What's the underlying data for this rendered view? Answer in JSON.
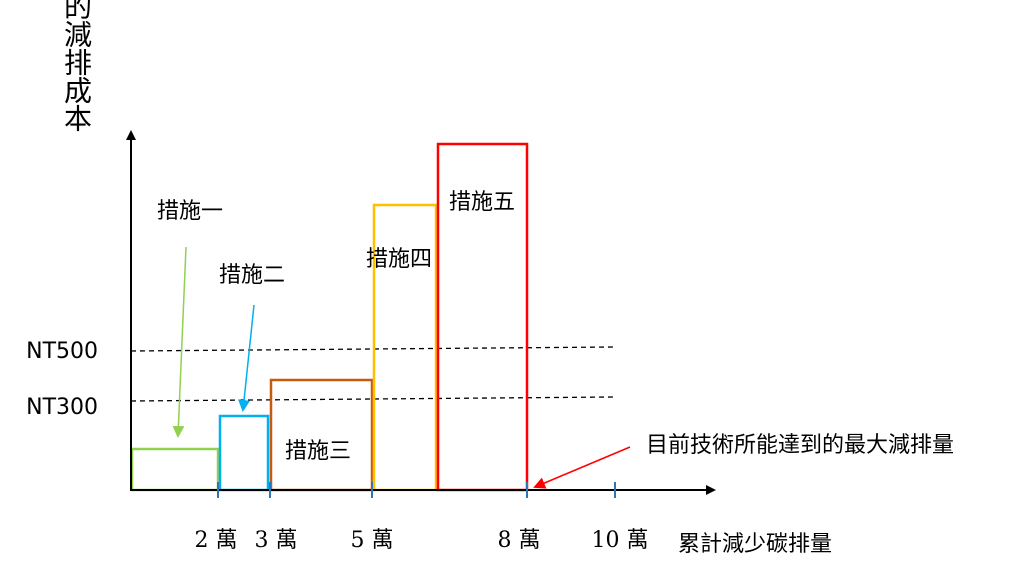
{
  "y_axis_label": "每單位的減排成本",
  "x_axis_label": "累計減少碳排量",
  "levels": [
    "NT500",
    "NT300"
  ],
  "x_ticks": [
    "2 萬",
    "3 萬",
    "5 萬",
    "8 萬",
    "10 萬"
  ],
  "measures": [
    "措施一",
    "措施二",
    "措施三",
    "措施四",
    "措施五"
  ],
  "annotation": "目前技術所能達到的最大減排量"
}
